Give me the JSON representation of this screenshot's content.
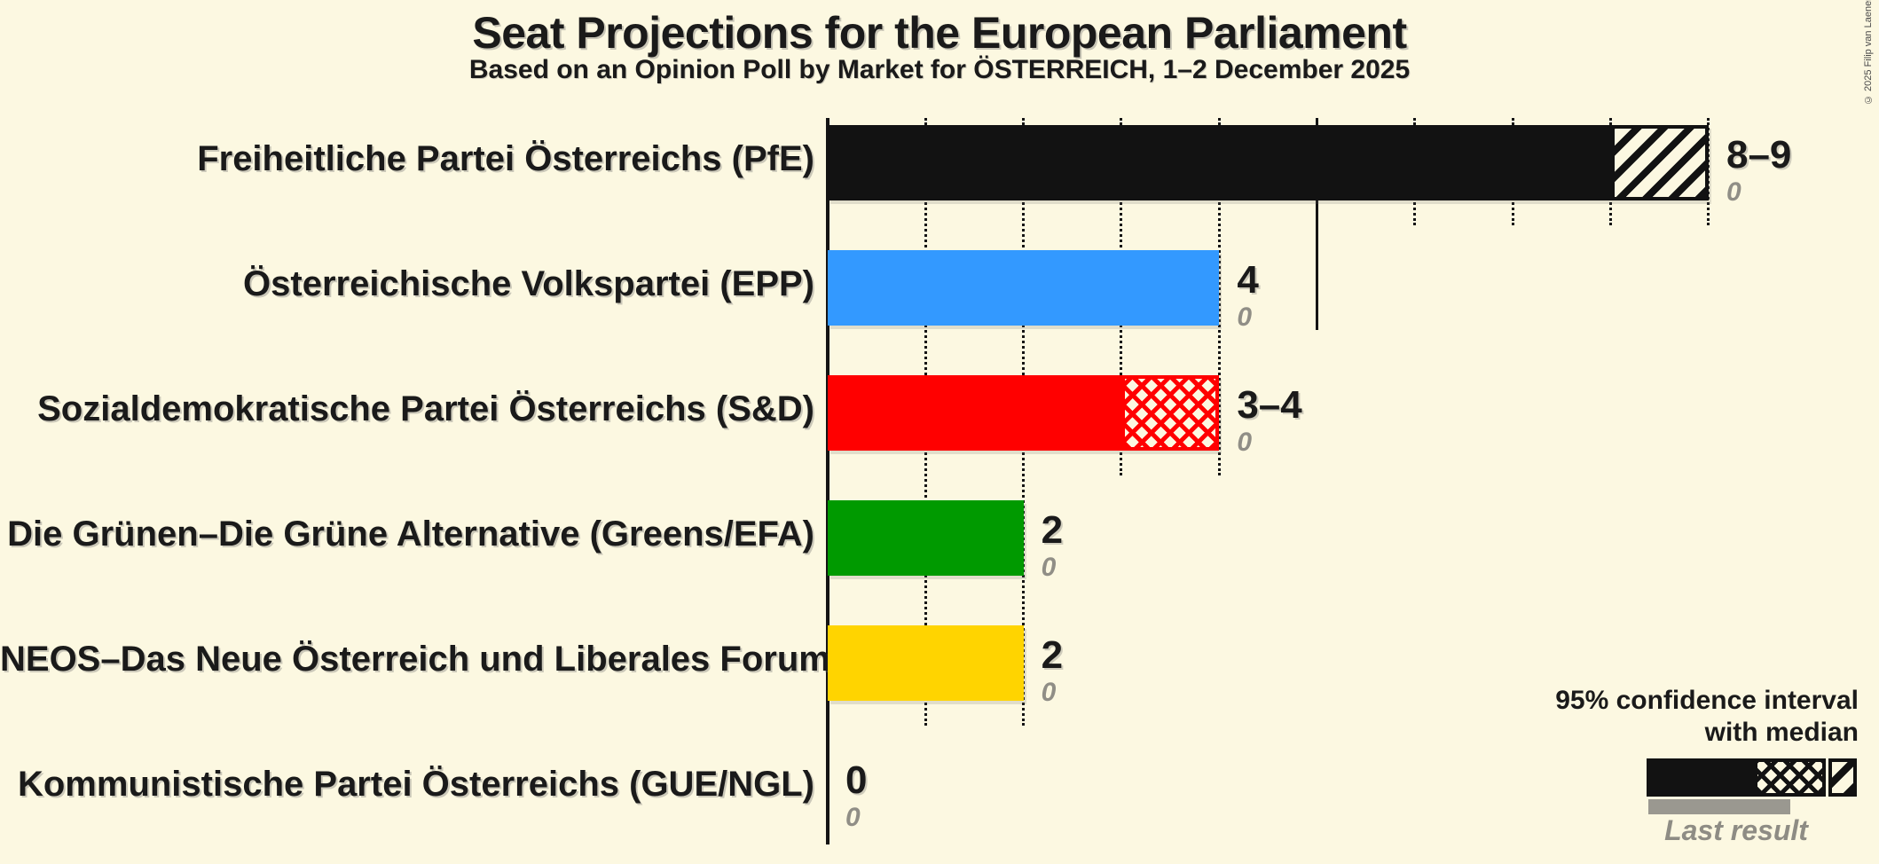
{
  "page": {
    "background_color": "#FCF8E1",
    "copyright": "© 2025 Filip van Laenen"
  },
  "header": {
    "title": "Seat Projections for the European Parliament",
    "subtitle": "Based on an Opinion Poll by Market for ÖSTERREICH, 1–2 December 2025"
  },
  "legend": {
    "ci_line1": "95% confidence interval",
    "ci_line2": "with median",
    "last_result_label": "Last result",
    "last_result_color": "#9A9890"
  },
  "chart_data": {
    "type": "bar",
    "orientation": "horizontal",
    "title": "Seat Projections for the European Parliament",
    "subtitle": "Based on an Opinion Poll by Market for ÖSTERREICH, 1–2 December 2025",
    "x_axis": {
      "min": 0,
      "max": 9,
      "ticks": [
        1,
        2,
        3,
        4,
        5,
        6,
        7,
        8,
        9
      ],
      "major_tick": 5,
      "grid": "dotted"
    },
    "parties": [
      {
        "label": "Freiheitliche Partei Österreichs (PfE)",
        "group": "PfE",
        "color": "#121212",
        "ci_low": 8,
        "median": 8,
        "ci_high": 9,
        "value_label": "8–9",
        "last_result": "0"
      },
      {
        "label": "Österreichische Volkspartei (EPP)",
        "group": "EPP",
        "color": "#3399FF",
        "ci_low": 4,
        "median": 4,
        "ci_high": 4,
        "value_label": "4",
        "last_result": "0"
      },
      {
        "label": "Sozialdemokratische Partei Österreichs (S&D)",
        "group": "S&D",
        "color": "#FF0000",
        "ci_low": 3,
        "median": 4,
        "ci_high": 4,
        "value_label": "3–4",
        "last_result": "0"
      },
      {
        "label": "Die Grünen–Die Grüne Alternative (Greens/EFA)",
        "group": "Greens/EFA",
        "color": "#009A00",
        "ci_low": 2,
        "median": 2,
        "ci_high": 2,
        "value_label": "2",
        "last_result": "0"
      },
      {
        "label": "NEOS–Das Neue Österreich und Liberales Forum (RE)",
        "group": "RE",
        "color": "#FFD400",
        "ci_low": 2,
        "median": 2,
        "ci_high": 2,
        "value_label": "2",
        "last_result": "0"
      },
      {
        "label": "Kommunistische Partei Österreichs (GUE/NGL)",
        "group": "GUE/NGL",
        "color": "#121212",
        "ci_low": 0,
        "median": 0,
        "ci_high": 0,
        "value_label": "0",
        "last_result": "0"
      }
    ],
    "legend_position": "bottom-right"
  }
}
